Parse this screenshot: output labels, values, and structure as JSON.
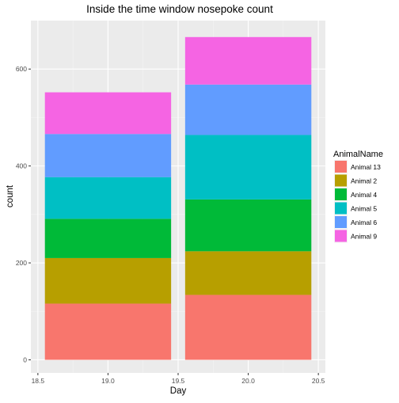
{
  "chart_data": {
    "type": "bar",
    "stacked": true,
    "title": "Inside the time window nosepoke count",
    "xlabel": "Day",
    "ylabel": "count",
    "xlim": [
      18.45,
      20.55
    ],
    "ylim": [
      -27,
      700
    ],
    "x_ticks": [
      18.5,
      19.0,
      19.5,
      20.0,
      20.5
    ],
    "x_tick_labels": [
      "18.5",
      "19.0",
      "19.5",
      "20.0",
      "20.5"
    ],
    "y_ticks": [
      0,
      200,
      400,
      600
    ],
    "y_tick_labels": [
      "0",
      "200",
      "400",
      "600"
    ],
    "bar_width": 0.9,
    "grid": true,
    "legend_position": "right",
    "legend_title": "AnimalName",
    "categories": [
      19,
      20
    ],
    "series": [
      {
        "name": "Animal 13",
        "color": "#F8766D",
        "values": [
          116,
          134
        ]
      },
      {
        "name": "Animal 2",
        "color": "#B79F00",
        "values": [
          94,
          90
        ]
      },
      {
        "name": "Animal 4",
        "color": "#00BA38",
        "values": [
          81,
          107
        ]
      },
      {
        "name": "Animal 5",
        "color": "#00BFC4",
        "values": [
          86,
          133
        ]
      },
      {
        "name": "Animal 6",
        "color": "#619CFF",
        "values": [
          89,
          104
        ]
      },
      {
        "name": "Animal 9",
        "color": "#F564E3",
        "values": [
          86,
          98
        ]
      }
    ]
  },
  "colors": {
    "panel_background": "#EBEBEB",
    "grid_major": "#FFFFFF",
    "grid_minor": "#F4F4F4",
    "axis_text": "#4D4D4D"
  }
}
